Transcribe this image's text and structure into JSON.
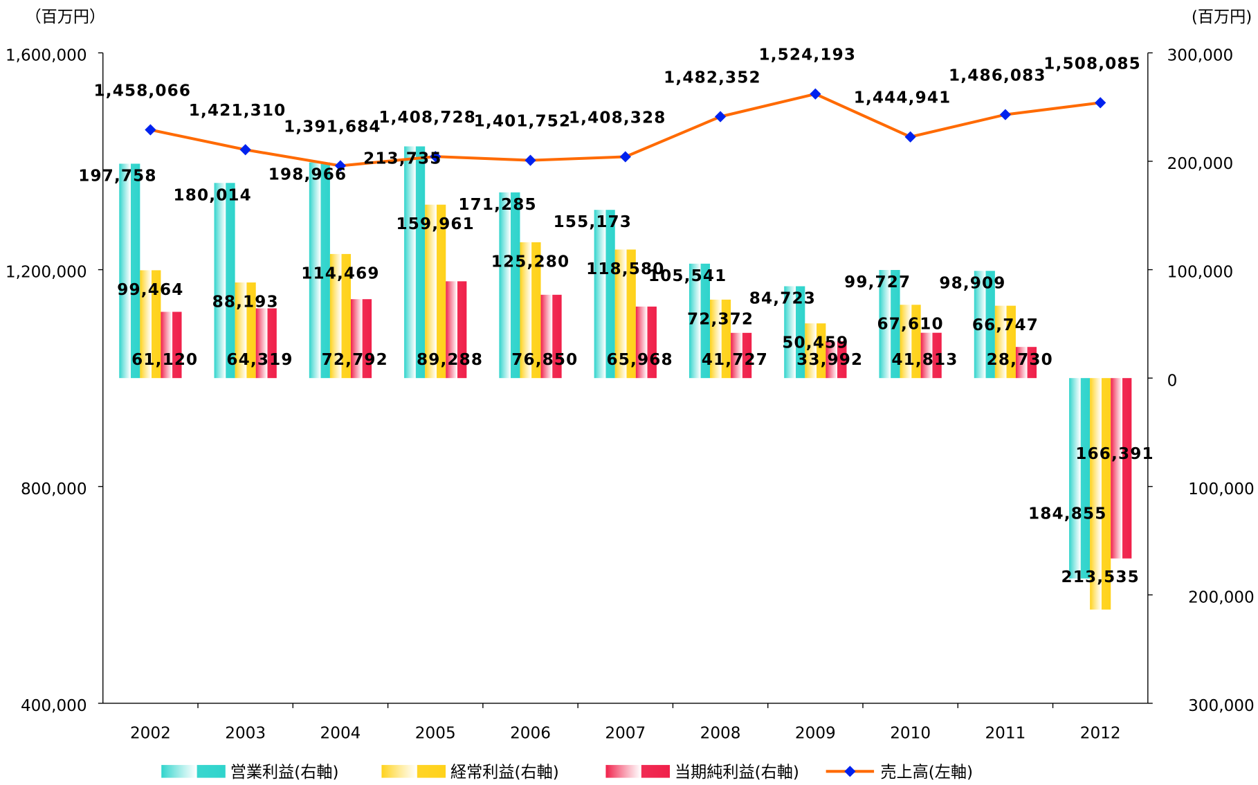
{
  "chart_data": {
    "type": "bar-line",
    "y_label": "（百万円）",
    "y2_label": "(百万円)",
    "categories": [
      "2002",
      "2003",
      "2004",
      "2005",
      "2006",
      "2007",
      "2008",
      "2009",
      "2010",
      "2011",
      "2012"
    ],
    "ylim": [
      400000,
      1600000
    ],
    "yticks": [
      {
        "value": 400000,
        "label": "400,000"
      },
      {
        "value": 800000,
        "label": "800,000"
      },
      {
        "value": 1200000,
        "label": "1,200,000"
      },
      {
        "value": 1600000,
        "label": "1,600,000"
      }
    ],
    "y2lim": [
      -300000,
      300000
    ],
    "y2ticks": [
      {
        "value": -300000,
        "label": "300,000"
      },
      {
        "value": -200000,
        "label": "200,000"
      },
      {
        "value": -100000,
        "label": "100,000"
      },
      0,
      {
        "value": 100000,
        "label": "100,000"
      },
      {
        "value": 200000,
        "label": "200,000"
      },
      {
        "value": 300000,
        "label": "300,000"
      }
    ],
    "series": [
      {
        "name": "営業利益(右軸)",
        "type": "bar",
        "axis": "y2",
        "color": "#2fd4cc",
        "values": [
          197758,
          180014,
          198966,
          213735,
          171285,
          155173,
          105541,
          84723,
          99727,
          98909,
          -184855
        ],
        "value_labels": [
          "197,758",
          "180,014",
          "198,966",
          "213,735",
          "171,285",
          "155,173",
          "105,541",
          "84,723",
          "99,727",
          "98,909",
          "184,855"
        ]
      },
      {
        "name": "経常利益(右軸)",
        "type": "bar",
        "axis": "y2",
        "color": "#ffd21a",
        "values": [
          99464,
          88193,
          114469,
          159961,
          125280,
          118580,
          72372,
          50459,
          67610,
          66747,
          -213535
        ],
        "value_labels": [
          "99,464",
          "88,193",
          "114,469",
          "159,961",
          "125,280",
          "118,580",
          "72,372",
          "50,459",
          "67,610",
          "66,747",
          "213,535"
        ]
      },
      {
        "name": "当期純利益(右軸)",
        "type": "bar",
        "axis": "y2",
        "color": "#f0204a",
        "values": [
          61120,
          64319,
          72792,
          89288,
          76850,
          65968,
          41727,
          33992,
          41813,
          28730,
          -166391
        ],
        "value_labels": [
          "61,120",
          "64,319",
          "72,792",
          "89,288",
          "76,850",
          "65,968",
          "41,727",
          "33,992",
          "41,813",
          "28,730",
          "166,391"
        ]
      },
      {
        "name": "売上高(左軸)",
        "type": "line",
        "color": "#ff6a00",
        "marker_color": "#0022ee",
        "values": [
          1458066,
          1421310,
          1391684,
          1408728,
          1401752,
          1408328,
          1482352,
          1524193,
          1444941,
          1486083,
          1508085
        ],
        "value_labels": [
          "1,458,066",
          "1,421,310",
          "1,391,684",
          "1,408,728",
          "1,401,752",
          "1,408,328",
          "1,482,352",
          "1,524,193",
          "1,444,941",
          "1,486,083",
          "1,508,085"
        ]
      }
    ]
  }
}
